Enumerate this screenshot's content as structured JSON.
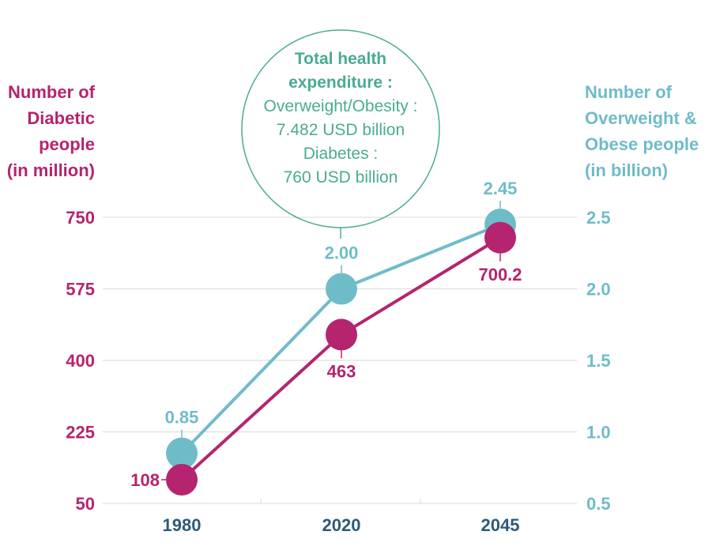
{
  "colors": {
    "diabetes": "#b5246e",
    "obesity": "#6fbcc9",
    "callout": "#4aab92",
    "axis_label": "#2d5a7a",
    "grid": "#d9d9d9"
  },
  "titles": {
    "left": [
      "Number of",
      "Diabetic",
      "people",
      "(in million)"
    ],
    "right": [
      "Number of",
      "Overweight &",
      "Obese people",
      "(in billion)"
    ]
  },
  "callout": {
    "heading": [
      "Total health",
      "expenditure :"
    ],
    "lines": [
      "Overweight/Obesity :",
      "7.482 USD billion",
      "Diabetes :",
      "760 USD billion"
    ],
    "anchor_category": "2020"
  },
  "chart_data": {
    "type": "line",
    "categories": [
      "1980",
      "2020",
      "2045"
    ],
    "series": [
      {
        "name": "Number of Diabetic people (in million)",
        "axis": "left",
        "values": [
          108,
          463,
          700.2
        ],
        "labels": [
          "108",
          "463",
          "700.2"
        ],
        "label_side": [
          "left",
          "below",
          "below"
        ]
      },
      {
        "name": "Number of Overweight & Obese people (in billion)",
        "axis": "right",
        "values": [
          0.85,
          2.0,
          2.45
        ],
        "labels": [
          "0.85",
          "2.00",
          "2.45"
        ],
        "label_side": [
          "above",
          "above",
          "above"
        ]
      }
    ],
    "y_left": {
      "ticks": [
        "50",
        "225",
        "400",
        "575",
        "750"
      ],
      "range": [
        50,
        750
      ]
    },
    "y_right": {
      "ticks": [
        "0.5",
        "1.0",
        "1.5",
        "2.0",
        "2.5"
      ],
      "range": [
        0.5,
        2.5
      ]
    },
    "grid": true
  }
}
